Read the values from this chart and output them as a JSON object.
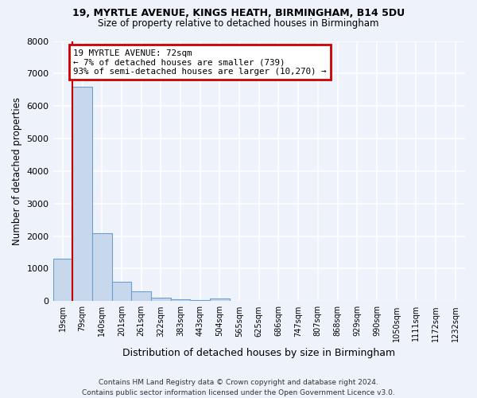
{
  "title_line1": "19, MYRTLE AVENUE, KINGS HEATH, BIRMINGHAM, B14 5DU",
  "title_line2": "Size of property relative to detached houses in Birmingham",
  "xlabel": "Distribution of detached houses by size in Birmingham",
  "ylabel": "Number of detached properties",
  "categories": [
    "19sqm",
    "79sqm",
    "140sqm",
    "201sqm",
    "261sqm",
    "322sqm",
    "383sqm",
    "443sqm",
    "504sqm",
    "565sqm",
    "625sqm",
    "686sqm",
    "747sqm",
    "807sqm",
    "868sqm",
    "929sqm",
    "990sqm",
    "1050sqm",
    "1111sqm",
    "1172sqm",
    "1232sqm"
  ],
  "values": [
    1300,
    6600,
    2100,
    600,
    300,
    100,
    60,
    30,
    80,
    0,
    0,
    0,
    0,
    0,
    0,
    0,
    0,
    0,
    0,
    0,
    0
  ],
  "bar_color": "#c8d8ec",
  "bar_edge_color": "#6a9fd0",
  "property_line_x": 0.5,
  "annotation_text_line1": "19 MYRTLE AVENUE: 72sqm",
  "annotation_text_line2": "← 7% of detached houses are smaller (739)",
  "annotation_text_line3": "93% of semi-detached houses are larger (10,270) →",
  "annotation_box_color": "#ffffff",
  "annotation_box_edge": "#cc0000",
  "property_line_color": "#cc0000",
  "ylim": [
    0,
    8000
  ],
  "yticks": [
    0,
    1000,
    2000,
    3000,
    4000,
    5000,
    6000,
    7000,
    8000
  ],
  "footer_line1": "Contains HM Land Registry data © Crown copyright and database right 2024.",
  "footer_line2": "Contains public sector information licensed under the Open Government Licence v3.0.",
  "bg_color": "#eef2fa",
  "grid_color": "#d8e0f0",
  "title_fontsize": 9,
  "subtitle_fontsize": 8.5
}
